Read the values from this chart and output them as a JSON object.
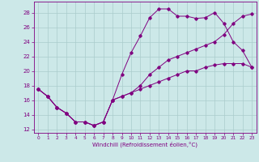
{
  "xlabel": "Windchill (Refroidissement éolien,°C)",
  "bg_color": "#cce8e8",
  "line_color": "#800080",
  "grid_color": "#aacccc",
  "line1_x": [
    0,
    1,
    2,
    3,
    4,
    5,
    6,
    7,
    8,
    9,
    10,
    11,
    12,
    13,
    14,
    15,
    16,
    17,
    18,
    19,
    20,
    21,
    22,
    23
  ],
  "line1_y": [
    17.5,
    16.5,
    15,
    14.2,
    13,
    13,
    12.5,
    13,
    16,
    19.5,
    22.5,
    24.8,
    27.3,
    28.5,
    28.5,
    27.5,
    27.5,
    27.2,
    27.3,
    28,
    26.5,
    24,
    22.8,
    20.5
  ],
  "line2_x": [
    0,
    1,
    2,
    3,
    4,
    5,
    6,
    7,
    8,
    9,
    10,
    11,
    12,
    13,
    14,
    15,
    16,
    17,
    18,
    19,
    20,
    21,
    22,
    23
  ],
  "line2_y": [
    17.5,
    16.5,
    15,
    14.2,
    13,
    13,
    12.5,
    13,
    16,
    16.5,
    17,
    17.5,
    18,
    18.5,
    19,
    19.5,
    20,
    20,
    20.5,
    20.8,
    21,
    21,
    21,
    20.5
  ],
  "line3_x": [
    0,
    1,
    2,
    3,
    4,
    5,
    6,
    7,
    8,
    9,
    10,
    11,
    12,
    13,
    14,
    15,
    16,
    17,
    18,
    19,
    20,
    21,
    22,
    23
  ],
  "line3_y": [
    17.5,
    16.5,
    15,
    14.2,
    13,
    13,
    12.5,
    13,
    16,
    16.5,
    17,
    18,
    19.5,
    20.5,
    21.5,
    22,
    22.5,
    23,
    23.5,
    24,
    25,
    26.5,
    27.5,
    27.8
  ],
  "xlim": [
    -0.5,
    23.5
  ],
  "ylim": [
    11.5,
    29.5
  ],
  "yticks": [
    12,
    14,
    16,
    18,
    20,
    22,
    24,
    26,
    28
  ],
  "xticks": [
    0,
    1,
    2,
    3,
    4,
    5,
    6,
    7,
    8,
    9,
    10,
    11,
    12,
    13,
    14,
    15,
    16,
    17,
    18,
    19,
    20,
    21,
    22,
    23
  ]
}
